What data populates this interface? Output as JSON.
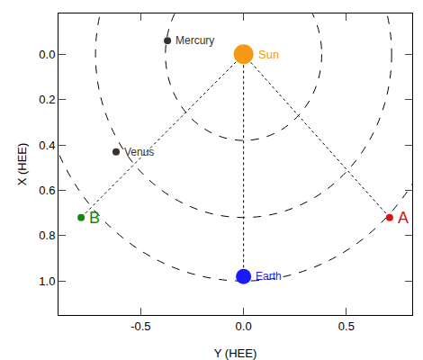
{
  "chart_data": {
    "type": "scatter",
    "xlabel": "Y (HEE)",
    "ylabel": "X (HEE)",
    "xlim": [
      -0.9,
      0.82
    ],
    "ylim": [
      1.15,
      -0.18
    ],
    "xticks": [
      -0.5,
      {
        "value": 0,
        "label": "0.0"
      },
      0.5
    ],
    "yticks": [
      {
        "value": 0,
        "label": "0.0"
      },
      0.2,
      0.4,
      0.6,
      0.8,
      {
        "value": 1,
        "label": "1.0"
      }
    ],
    "grid": false,
    "points": [
      {
        "name": "Sun",
        "color": "#f59a16",
        "x": 0.0,
        "y": 0.0
      },
      {
        "name": "Mercury",
        "color": "#333333",
        "x": -0.37,
        "y": -0.06
      },
      {
        "name": "Venus",
        "color": "#333333",
        "x": -0.62,
        "y": 0.43
      },
      {
        "name": "Earth",
        "color": "#1a1aff",
        "x": 0.0,
        "y": 0.98
      },
      {
        "name": "A",
        "color": "#e01010",
        "x": 0.71,
        "y": 0.72
      },
      {
        "name": "B",
        "color": "#118811",
        "x": -0.79,
        "y": 0.72
      }
    ],
    "orbits": [
      0.38,
      0.72,
      1.0
    ],
    "lines_from_sun": [
      "A",
      "Earth",
      "B"
    ]
  }
}
